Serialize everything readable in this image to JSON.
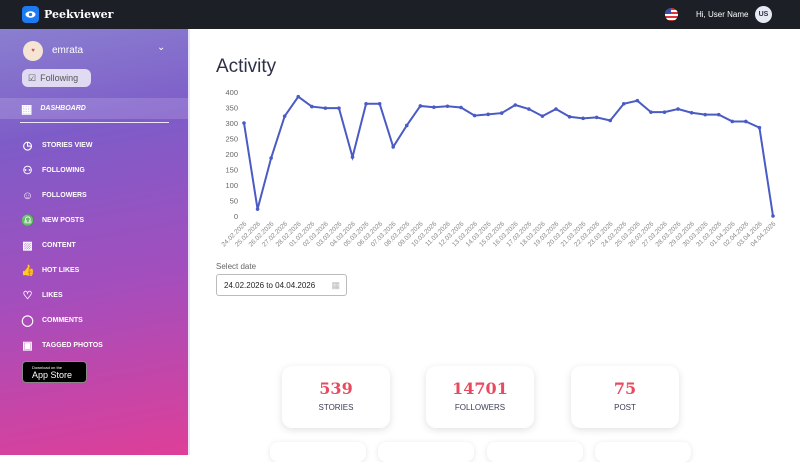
{
  "header": {
    "brand": "Peekviewer",
    "greeting": "Hi,  User Name",
    "avatar_initials": "US",
    "flag": "us-flag-icon"
  },
  "sidebar": {
    "username": "emrata",
    "follow_label": "Following",
    "dashboard": "DASHBOARD",
    "items": [
      {
        "label": "STORIES VIEW",
        "icon": "clock-icon"
      },
      {
        "label": "FOLLOWING",
        "icon": "user-icon"
      },
      {
        "label": "FOLLOWERS",
        "icon": "followers-icon"
      },
      {
        "label": "NEW POSTS",
        "icon": "bell-icon"
      },
      {
        "label": "CONTENT",
        "icon": "image-icon"
      },
      {
        "label": "HOT LIKES",
        "icon": "thumbs-up-icon"
      },
      {
        "label": "LIKES",
        "icon": "heart-icon"
      },
      {
        "label": "COMMENTS",
        "icon": "comment-icon"
      },
      {
        "label": "TAGGED PHOTOS",
        "icon": "tagged-icon"
      }
    ],
    "appstore": {
      "small": "Download on the",
      "big": "App Store"
    }
  },
  "main": {
    "title": "Activity",
    "date_label": "Select date",
    "date_value": "24.02.2026 to 04.04.2026",
    "stats": [
      {
        "value": "539",
        "label": "STORIES"
      },
      {
        "value": "14701",
        "label": "FOLLOWERS"
      },
      {
        "value": "75",
        "label": "POST"
      }
    ]
  },
  "chart_data": {
    "type": "line",
    "ylim": [
      0,
      400
    ],
    "yticks": [
      0,
      50,
      100,
      150,
      200,
      250,
      300,
      350,
      400
    ],
    "color": "#4a5bc4",
    "grid": false,
    "x": [
      "24.02.2026",
      "25.02.2026",
      "26.02.2026",
      "27.02.2026",
      "28.02.2026",
      "01.03.2026",
      "02.03.2026",
      "03.03.2026",
      "04.03.2026",
      "05.03.2026",
      "06.03.2026",
      "07.03.2026",
      "08.03.2026",
      "09.03.2026",
      "10.03.2026",
      "11.03.2026",
      "12.03.2026",
      "13.03.2026",
      "14.03.2026",
      "15.03.2026",
      "16.03.2026",
      "17.03.2026",
      "18.03.2026",
      "19.03.2026",
      "20.03.2026",
      "21.03.2026",
      "22.03.2026",
      "23.03.2026",
      "24.03.2026",
      "25.03.2026",
      "26.03.2026",
      "27.03.2026",
      "28.03.2026",
      "29.03.2026",
      "30.03.2026",
      "31.03.2026",
      "01.04.2026",
      "02.04.2026",
      "03.04.2026",
      "04.04.2026"
    ],
    "values": [
      300,
      22,
      187,
      322,
      385,
      353,
      348,
      348,
      190,
      362,
      362,
      223,
      292,
      355,
      351,
      354,
      350,
      324,
      328,
      332,
      358,
      345,
      322,
      345,
      320,
      315,
      318,
      308,
      362,
      372,
      335,
      335,
      345,
      333,
      327,
      327,
      305,
      305,
      285,
      0
    ]
  }
}
